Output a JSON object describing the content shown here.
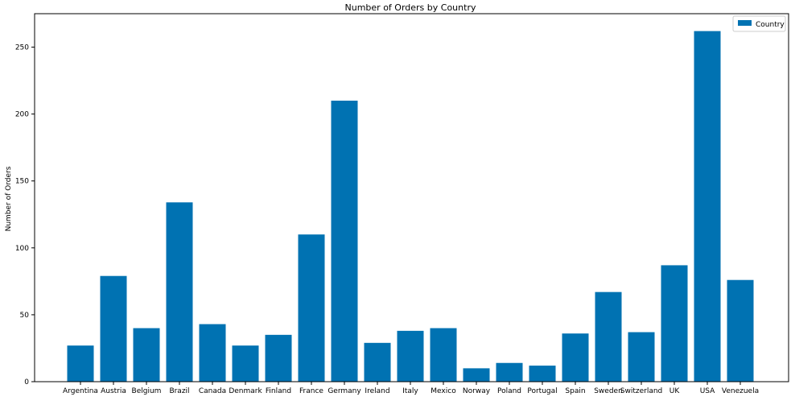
{
  "chart_data": {
    "type": "bar",
    "title": "Number of Orders by Country",
    "xlabel": "",
    "ylabel": "Number of Orders",
    "ylim": [
      0,
      275
    ],
    "yticks": [
      0,
      50,
      100,
      150,
      200,
      250
    ],
    "grid": false,
    "legend_position": "top-right",
    "categories": [
      "Argentina",
      "Austria",
      "Belgium",
      "Brazil",
      "Canada",
      "Denmark",
      "Finland",
      "France",
      "Germany",
      "Ireland",
      "Italy",
      "Mexico",
      "Norway",
      "Poland",
      "Portugal",
      "Spain",
      "Sweden",
      "Switzerland",
      "UK",
      "USA",
      "Venezuela"
    ],
    "series": [
      {
        "name": "Country",
        "color": "#0072b2",
        "values": [
          27,
          79,
          40,
          134,
          43,
          27,
          35,
          110,
          210,
          29,
          38,
          40,
          10,
          14,
          12,
          36,
          67,
          37,
          87,
          262,
          76
        ]
      }
    ]
  }
}
